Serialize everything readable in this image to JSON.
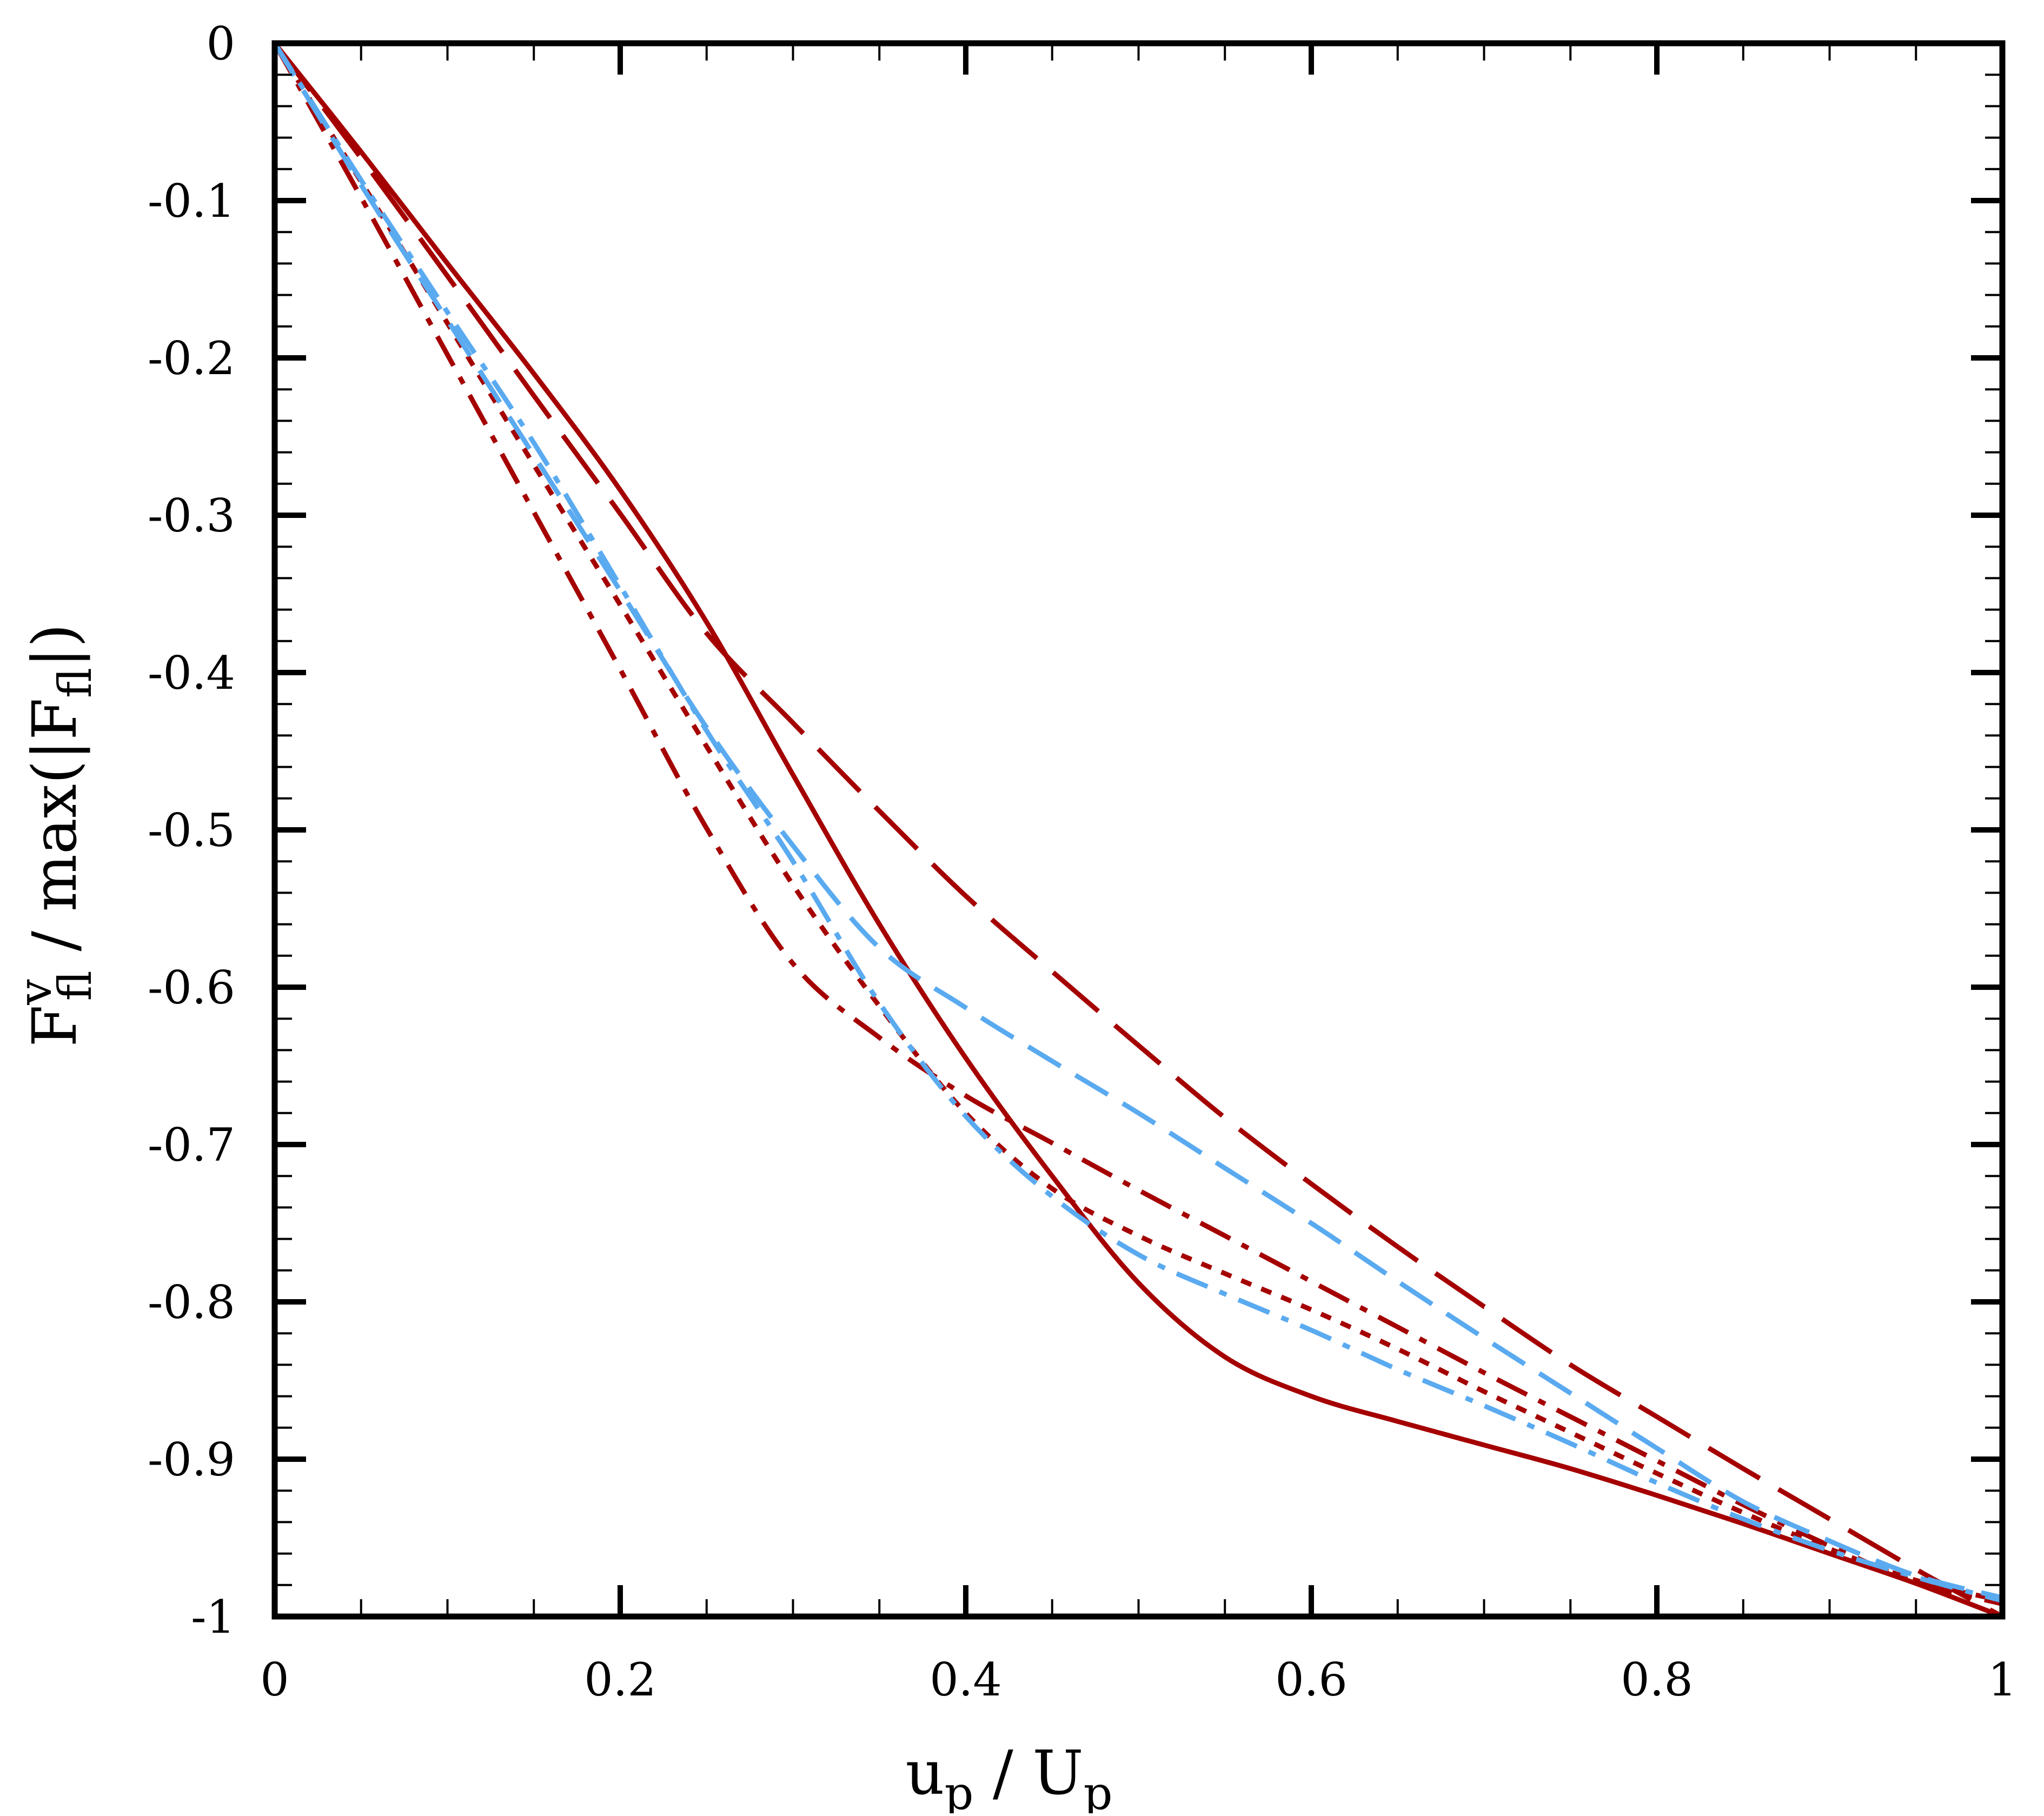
{
  "chart_data": {
    "type": "line",
    "title": "",
    "xlabel": {
      "base": "u",
      "sub": "p",
      "sep": " / ",
      "base2": "U",
      "sub2": "p"
    },
    "ylabel": {
      "base": "F",
      "sup": "v",
      "sub": "fl",
      "tail": " / max(|F",
      "tail_sub": "fl",
      "close": "|)"
    },
    "xlim": [
      0,
      1
    ],
    "ylim": [
      -1,
      0
    ],
    "grid": false,
    "x_ticks": [
      0,
      0.2,
      0.4,
      0.6,
      0.8,
      1
    ],
    "x_tick_labels": [
      "0",
      "0.2",
      "0.4",
      "0.6",
      "0.8",
      "1"
    ],
    "y_ticks": [
      0,
      -0.1,
      -0.2,
      -0.3,
      -0.4,
      -0.5,
      -0.6,
      -0.7,
      -0.8,
      -0.9,
      -1
    ],
    "y_tick_labels": [
      "0",
      "-0.1",
      "-0.2",
      "-0.3",
      "-0.4",
      "-0.5",
      "-0.6",
      "-0.7",
      "-0.8",
      "-0.9",
      "-1"
    ],
    "colors": {
      "dark_red": "#a50000",
      "light_blue": "#5aaaf0",
      "axis": "#000000"
    },
    "series": [
      {
        "color": "#a50000",
        "style": "solid",
        "x": [
          0,
          0.05,
          0.1,
          0.15,
          0.2,
          0.25,
          0.3,
          0.35,
          0.4,
          0.45,
          0.5,
          0.55,
          0.6,
          0.65,
          0.7,
          0.75,
          0.8,
          0.85,
          0.9,
          0.95,
          1
        ],
        "y": [
          0,
          -0.069,
          -0.14,
          -0.21,
          -0.284,
          -0.368,
          -0.465,
          -0.56,
          -0.645,
          -0.72,
          -0.788,
          -0.835,
          -0.86,
          -0.876,
          -0.891,
          -0.906,
          -0.923,
          -0.941,
          -0.96,
          -0.979,
          -1
        ]
      },
      {
        "color": "#a50000",
        "style": "longdash",
        "x": [
          0,
          0.05,
          0.1,
          0.15,
          0.2,
          0.25,
          0.3,
          0.35,
          0.4,
          0.45,
          0.5,
          0.55,
          0.6,
          0.65,
          0.7,
          0.75,
          0.8,
          0.85,
          0.9,
          0.95,
          1
        ],
        "y": [
          0,
          -0.073,
          -0.148,
          -0.224,
          -0.299,
          -0.375,
          -0.432,
          -0.488,
          -0.542,
          -0.59,
          -0.637,
          -0.683,
          -0.725,
          -0.765,
          -0.803,
          -0.84,
          -0.873,
          -0.906,
          -0.938,
          -0.97,
          -1
        ]
      },
      {
        "color": "#a50000",
        "style": "dashdot",
        "x": [
          0,
          0.05,
          0.1,
          0.15,
          0.2,
          0.25,
          0.3,
          0.35,
          0.4,
          0.45,
          0.5,
          0.55,
          0.6,
          0.65,
          0.7,
          0.75,
          0.8,
          0.85,
          0.9,
          0.95,
          1
        ],
        "y": [
          0,
          -0.098,
          -0.198,
          -0.298,
          -0.398,
          -0.499,
          -0.585,
          -0.632,
          -0.669,
          -0.699,
          -0.729,
          -0.758,
          -0.787,
          -0.816,
          -0.845,
          -0.873,
          -0.901,
          -0.929,
          -0.955,
          -0.978,
          -0.992
        ]
      },
      {
        "color": "#a50000",
        "style": "dotted",
        "x": [
          0,
          0.05,
          0.1,
          0.15,
          0.2,
          0.25,
          0.3,
          0.35,
          0.4,
          0.45,
          0.5,
          0.55,
          0.6,
          0.65,
          0.7,
          0.75,
          0.8,
          0.85,
          0.9,
          0.95,
          1
        ],
        "y": [
          0,
          -0.088,
          -0.178,
          -0.268,
          -0.357,
          -0.447,
          -0.535,
          -0.612,
          -0.68,
          -0.728,
          -0.758,
          -0.782,
          -0.805,
          -0.83,
          -0.857,
          -0.883,
          -0.909,
          -0.934,
          -0.957,
          -0.977,
          -0.99
        ]
      },
      {
        "color": "#5aaaf0",
        "style": "dashed",
        "x": [
          0,
          0.05,
          0.1,
          0.15,
          0.2,
          0.25,
          0.3,
          0.35,
          0.4,
          0.45,
          0.5,
          0.55,
          0.6,
          0.65,
          0.7,
          0.75,
          0.8,
          0.85,
          0.9,
          0.95,
          1
        ],
        "y": [
          0,
          -0.09,
          -0.176,
          -0.262,
          -0.348,
          -0.435,
          -0.51,
          -0.575,
          -0.613,
          -0.647,
          -0.68,
          -0.715,
          -0.75,
          -0.787,
          -0.823,
          -0.858,
          -0.893,
          -0.927,
          -0.952,
          -0.974,
          -0.988
        ]
      },
      {
        "color": "#5aaaf0",
        "style": "dashdot",
        "x": [
          0,
          0.05,
          0.1,
          0.15,
          0.2,
          0.25,
          0.3,
          0.35,
          0.4,
          0.45,
          0.5,
          0.55,
          0.6,
          0.65,
          0.7,
          0.75,
          0.8,
          0.85,
          0.9,
          0.95,
          1
        ],
        "y": [
          0,
          -0.087,
          -0.171,
          -0.254,
          -0.345,
          -0.437,
          -0.52,
          -0.61,
          -0.682,
          -0.733,
          -0.77,
          -0.795,
          -0.818,
          -0.843,
          -0.866,
          -0.89,
          -0.915,
          -0.938,
          -0.958,
          -0.975,
          -0.99
        ]
      }
    ]
  }
}
